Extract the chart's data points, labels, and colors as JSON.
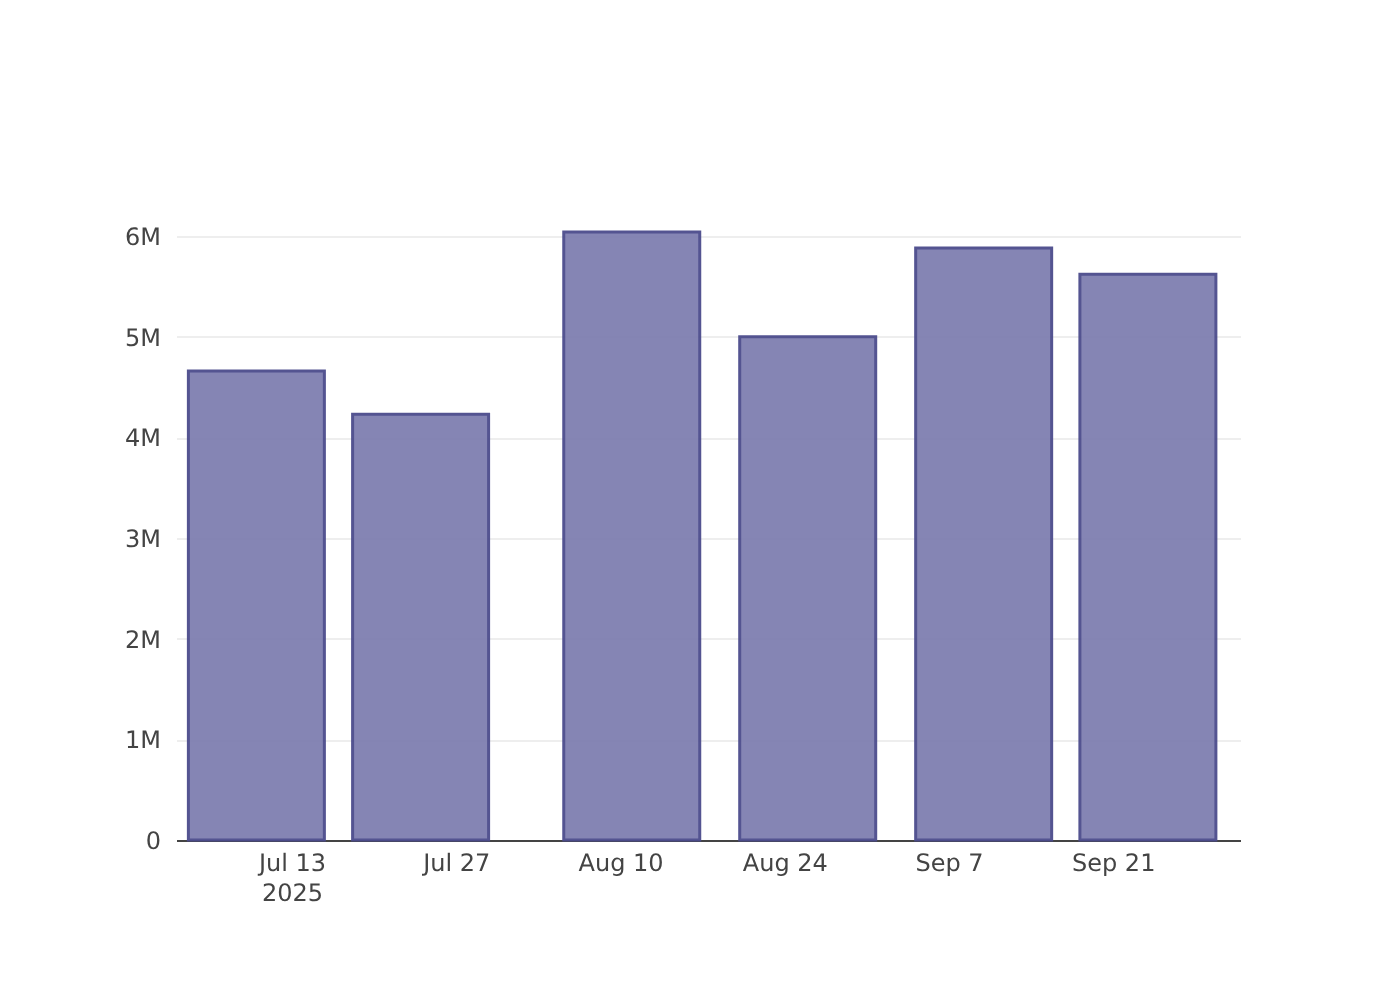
{
  "chart_data": {
    "type": "bar",
    "x": [
      "2025-07-10",
      "2025-07-24",
      "2025-08-11",
      "2025-08-26",
      "2025-09-10",
      "2025-09-24"
    ],
    "values": [
      4660000,
      4230000,
      6040000,
      5000000,
      5880000,
      5620000
    ],
    "color": "#7f7fb0",
    "xlim": [
      "2025-07-04",
      "2025-10-01"
    ],
    "xticks": [
      {
        "value": "2025-07-13",
        "label": "Jul 13\n2025"
      },
      {
        "value": "2025-07-27",
        "label": "Jul 27"
      },
      {
        "value": "2025-08-10",
        "label": "Aug 10"
      },
      {
        "value": "2025-08-24",
        "label": "Aug 24"
      },
      {
        "value": "2025-09-07",
        "label": "Sep 7"
      },
      {
        "value": "2025-09-21",
        "label": "Sep 21"
      }
    ],
    "yticks": [
      0,
      {
        "value": 1000000,
        "label": "1M"
      },
      {
        "value": 2000000,
        "label": "2M"
      },
      {
        "value": 3000000,
        "label": "3M"
      },
      {
        "value": 4000000,
        "label": "4M"
      },
      {
        "value": 5000000,
        "label": "5M"
      },
      {
        "value": 6000000,
        "label": "6M"
      }
    ],
    "ylim": [
      0,
      6040000
    ],
    "grid": "y"
  }
}
